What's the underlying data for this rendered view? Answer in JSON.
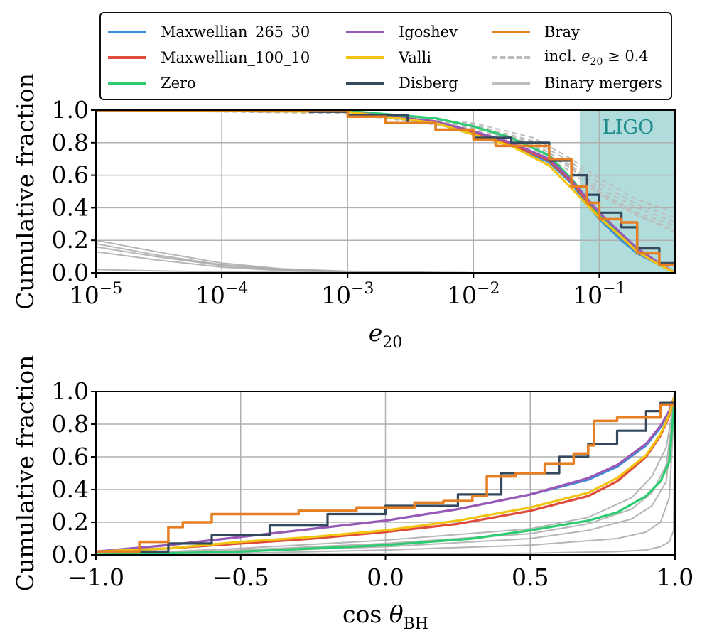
{
  "colors": {
    "Maxwellian_265_30": "#3a8fd8",
    "Maxwellian_100_10": "#e04a3b",
    "Zero": "#2ecc71",
    "Igoshev": "#9b59b6",
    "Valli": "#f1c40f",
    "Disberg": "#34495e",
    "Bray": "#e67e22",
    "incl": "#bdbdbd",
    "mergers": "#a9a9a9",
    "ligo_fill": "#b0dcdc",
    "ligo_text": "#1f8c8c"
  },
  "legend": {
    "items": [
      {
        "key": "Maxwellian_265_30",
        "label": "Maxwellian_265_30",
        "style": "solid"
      },
      {
        "key": "Maxwellian_100_10",
        "label": "Maxwellian_100_10",
        "style": "solid"
      },
      {
        "key": "Zero",
        "label": "Zero",
        "style": "solid"
      },
      {
        "key": "Igoshev",
        "label": "Igoshev",
        "style": "solid"
      },
      {
        "key": "Valli",
        "label": "Valli",
        "style": "solid"
      },
      {
        "key": "Disberg",
        "label": "Disberg",
        "style": "solid"
      },
      {
        "key": "Bray",
        "label": "Bray",
        "style": "solid"
      },
      {
        "key": "incl",
        "label": "incl.",
        "math_var": "e",
        "math_sub": "20",
        "math_rest": "≥ 0.4",
        "style": "dashed"
      },
      {
        "key": "mergers",
        "label": "Binary mergers",
        "style": "solid"
      }
    ]
  },
  "chart_data": [
    {
      "type": "line",
      "title": "",
      "xlabel_var": "e",
      "xlabel_sub": "20",
      "ylabel": "Cumulative fraction",
      "xscale": "log",
      "xlim": [
        1e-05,
        0.4
      ],
      "ylim": [
        0,
        1
      ],
      "grid": true,
      "xticks": [
        {
          "value": 1e-05,
          "base": "10",
          "exp": "−5"
        },
        {
          "value": 0.0001,
          "base": "10",
          "exp": "−4"
        },
        {
          "value": 0.001,
          "base": "10",
          "exp": "−3"
        },
        {
          "value": 0.01,
          "base": "10",
          "exp": "−2"
        },
        {
          "value": 0.1,
          "base": "10",
          "exp": "−1"
        }
      ],
      "yticks": [
        "0.0",
        "0.2",
        "0.4",
        "0.6",
        "0.8",
        "1.0"
      ],
      "shaded_region": {
        "label": "LIGO",
        "x_range": [
          0.07,
          0.4
        ]
      },
      "series": [
        {
          "name": "Maxwellian_265_30",
          "x": [
            1e-05,
            0.001,
            0.005,
            0.01,
            0.02,
            0.04,
            0.06,
            0.1,
            0.15,
            0.2,
            0.3,
            0.4
          ],
          "y": [
            1.0,
            0.99,
            0.92,
            0.85,
            0.78,
            0.68,
            0.55,
            0.33,
            0.2,
            0.12,
            0.05,
            0.0
          ]
        },
        {
          "name": "Maxwellian_100_10",
          "x": [
            1e-05,
            0.001,
            0.005,
            0.01,
            0.02,
            0.04,
            0.06,
            0.1,
            0.15,
            0.2,
            0.3,
            0.4
          ],
          "y": [
            1.0,
            0.99,
            0.93,
            0.86,
            0.79,
            0.69,
            0.56,
            0.35,
            0.22,
            0.13,
            0.05,
            0.0
          ]
        },
        {
          "name": "Zero",
          "x": [
            1e-05,
            0.001,
            0.005,
            0.01,
            0.02,
            0.04,
            0.06,
            0.1,
            0.15,
            0.2,
            0.3,
            0.4
          ],
          "y": [
            1.0,
            0.995,
            0.95,
            0.9,
            0.83,
            0.72,
            0.58,
            0.36,
            0.23,
            0.14,
            0.05,
            0.0
          ]
        },
        {
          "name": "Igoshev",
          "x": [
            1e-05,
            0.001,
            0.005,
            0.01,
            0.02,
            0.04,
            0.06,
            0.1,
            0.15,
            0.2,
            0.3,
            0.4
          ],
          "y": [
            1.0,
            0.99,
            0.93,
            0.87,
            0.8,
            0.7,
            0.57,
            0.37,
            0.24,
            0.15,
            0.06,
            0.0
          ]
        },
        {
          "name": "Valli",
          "x": [
            1e-05,
            0.001,
            0.005,
            0.01,
            0.02,
            0.04,
            0.06,
            0.1,
            0.15,
            0.2,
            0.3,
            0.4
          ],
          "y": [
            1.0,
            0.99,
            0.92,
            0.85,
            0.78,
            0.66,
            0.52,
            0.34,
            0.22,
            0.13,
            0.05,
            0.0
          ]
        },
        {
          "name": "Disberg",
          "x": [
            1e-05,
            0.0005,
            0.001,
            0.003,
            0.005,
            0.01,
            0.02,
            0.04,
            0.06,
            0.08,
            0.1,
            0.15,
            0.2,
            0.3,
            0.4
          ],
          "y": [
            1.0,
            0.99,
            0.97,
            0.92,
            0.88,
            0.83,
            0.8,
            0.69,
            0.6,
            0.48,
            0.37,
            0.28,
            0.15,
            0.06,
            0.0
          ]
        },
        {
          "name": "Bray",
          "x": [
            1e-05,
            0.001,
            0.002,
            0.005,
            0.01,
            0.015,
            0.03,
            0.04,
            0.06,
            0.08,
            0.1,
            0.15,
            0.2,
            0.3,
            0.4
          ],
          "y": [
            1.0,
            0.96,
            0.92,
            0.88,
            0.82,
            0.78,
            0.78,
            0.7,
            0.53,
            0.43,
            0.33,
            0.31,
            0.12,
            0.05,
            0.0
          ]
        }
      ],
      "incl_curves": [
        {
          "x": [
            1e-05,
            0.001,
            0.01,
            0.03,
            0.06,
            0.1,
            0.2,
            0.4
          ],
          "y": [
            1.0,
            0.99,
            0.92,
            0.83,
            0.7,
            0.58,
            0.45,
            0.37
          ]
        },
        {
          "x": [
            1e-05,
            0.001,
            0.01,
            0.03,
            0.06,
            0.1,
            0.2,
            0.4
          ],
          "y": [
            1.0,
            0.99,
            0.91,
            0.81,
            0.68,
            0.55,
            0.42,
            0.34
          ]
        },
        {
          "x": [
            1e-05,
            0.001,
            0.01,
            0.03,
            0.06,
            0.1,
            0.2,
            0.4
          ],
          "y": [
            1.0,
            0.99,
            0.9,
            0.79,
            0.66,
            0.52,
            0.4,
            0.31
          ]
        },
        {
          "x": [
            1e-05,
            0.001,
            0.01,
            0.03,
            0.06,
            0.1,
            0.2,
            0.4
          ],
          "y": [
            1.0,
            0.98,
            0.89,
            0.78,
            0.64,
            0.5,
            0.37,
            0.29
          ]
        },
        {
          "x": [
            1e-05,
            0.001,
            0.01,
            0.03,
            0.06,
            0.1,
            0.2,
            0.4
          ],
          "y": [
            1.0,
            0.98,
            0.88,
            0.76,
            0.62,
            0.48,
            0.35,
            0.27
          ]
        },
        {
          "x": [
            1e-05,
            0.001,
            0.01,
            0.03,
            0.06,
            0.1,
            0.2,
            0.4
          ],
          "y": [
            1.0,
            0.99,
            0.9,
            0.8,
            0.65,
            0.49,
            0.36,
            0.25
          ]
        }
      ],
      "merger_curves": [
        {
          "x": [
            1e-05,
            3e-05,
            0.0001,
            0.0003,
            0.001,
            0.01,
            0.4
          ],
          "y": [
            0.2,
            0.13,
            0.06,
            0.025,
            0.01,
            0.0,
            0.0
          ]
        },
        {
          "x": [
            1e-05,
            3e-05,
            0.0001,
            0.0003,
            0.001,
            0.01,
            0.4
          ],
          "y": [
            0.18,
            0.11,
            0.05,
            0.02,
            0.008,
            0.0,
            0.0
          ]
        },
        {
          "x": [
            1e-05,
            3e-05,
            0.0001,
            0.0003,
            0.001,
            0.01,
            0.4
          ],
          "y": [
            0.16,
            0.1,
            0.045,
            0.018,
            0.007,
            0.0,
            0.0
          ]
        },
        {
          "x": [
            1e-05,
            3e-05,
            0.0001,
            0.0003,
            0.001,
            0.01,
            0.4
          ],
          "y": [
            0.13,
            0.08,
            0.035,
            0.014,
            0.005,
            0.0,
            0.0
          ]
        },
        {
          "x": [
            1e-05,
            3e-05,
            0.0001,
            0.0003,
            0.001,
            0.01,
            0.4
          ],
          "y": [
            0.02,
            0.012,
            0.006,
            0.003,
            0.001,
            0.0,
            0.0
          ]
        }
      ]
    },
    {
      "type": "line",
      "title": "",
      "xlabel_fn": "cos",
      "xlabel_var": "θ",
      "xlabel_sub": "BH",
      "ylabel": "Cumulative fraction",
      "xscale": "linear",
      "xlim": [
        -1,
        1
      ],
      "ylim": [
        0,
        1
      ],
      "grid": true,
      "xticks": [
        {
          "value": -1.0,
          "label": "−1.0"
        },
        {
          "value": -0.5,
          "label": "−0.5"
        },
        {
          "value": 0.0,
          "label": "0.0"
        },
        {
          "value": 0.5,
          "label": "0.5"
        },
        {
          "value": 1.0,
          "label": "1.0"
        }
      ],
      "yticks": [
        "0.0",
        "0.2",
        "0.4",
        "0.6",
        "0.8",
        "1.0"
      ],
      "series": [
        {
          "name": "Maxwellian_265_30",
          "x": [
            -1,
            -0.75,
            -0.5,
            -0.25,
            0,
            0.25,
            0.5,
            0.7,
            0.8,
            0.9,
            0.95,
            0.98,
            1.0
          ],
          "y": [
            0.02,
            0.06,
            0.11,
            0.16,
            0.21,
            0.28,
            0.37,
            0.46,
            0.54,
            0.67,
            0.78,
            0.88,
            0.98
          ]
        },
        {
          "name": "Maxwellian_100_10",
          "x": [
            -1,
            -0.75,
            -0.5,
            -0.25,
            0,
            0.25,
            0.5,
            0.7,
            0.8,
            0.9,
            0.95,
            0.98,
            1.0
          ],
          "y": [
            0.02,
            0.04,
            0.07,
            0.1,
            0.14,
            0.19,
            0.27,
            0.36,
            0.45,
            0.6,
            0.73,
            0.85,
            0.98
          ]
        },
        {
          "name": "Zero",
          "x": [
            -1,
            -0.5,
            0,
            0.3,
            0.5,
            0.7,
            0.8,
            0.9,
            0.95,
            0.98,
            1.0
          ],
          "y": [
            0.0,
            0.02,
            0.06,
            0.1,
            0.15,
            0.21,
            0.26,
            0.36,
            0.45,
            0.57,
            0.98
          ]
        },
        {
          "name": "Igoshev",
          "x": [
            -1,
            -0.75,
            -0.5,
            -0.25,
            0,
            0.25,
            0.5,
            0.7,
            0.8,
            0.9,
            0.95,
            0.98,
            1.0
          ],
          "y": [
            0.02,
            0.06,
            0.11,
            0.16,
            0.21,
            0.28,
            0.37,
            0.47,
            0.55,
            0.68,
            0.79,
            0.88,
            0.98
          ]
        },
        {
          "name": "Valli",
          "x": [
            -1,
            -0.75,
            -0.5,
            -0.25,
            0,
            0.25,
            0.5,
            0.7,
            0.8,
            0.9,
            0.95,
            0.98,
            1.0
          ],
          "y": [
            0.02,
            0.04,
            0.08,
            0.11,
            0.15,
            0.21,
            0.29,
            0.38,
            0.47,
            0.61,
            0.74,
            0.86,
            0.98
          ]
        },
        {
          "name": "Disberg",
          "x": [
            -1,
            -0.75,
            -0.6,
            -0.4,
            -0.2,
            0,
            0.25,
            0.4,
            0.6,
            0.7,
            0.8,
            0.9,
            0.95,
            1.0
          ],
          "y": [
            0.02,
            0.07,
            0.12,
            0.18,
            0.25,
            0.3,
            0.37,
            0.5,
            0.6,
            0.68,
            0.76,
            0.88,
            0.93,
            0.98
          ]
        },
        {
          "name": "Bray",
          "x": [
            -1,
            -0.85,
            -0.75,
            -0.7,
            -0.6,
            -0.5,
            -0.3,
            -0.1,
            0.1,
            0.2,
            0.3,
            0.35,
            0.45,
            0.55,
            0.65,
            0.7,
            0.72,
            0.8,
            0.85,
            0.9,
            0.95,
            1.0
          ],
          "y": [
            0.02,
            0.08,
            0.17,
            0.2,
            0.25,
            0.25,
            0.27,
            0.29,
            0.32,
            0.33,
            0.36,
            0.48,
            0.5,
            0.56,
            0.62,
            0.67,
            0.82,
            0.84,
            0.84,
            0.84,
            0.92,
            0.98
          ]
        }
      ],
      "merger_curves": [
        {
          "x": [
            -1,
            -0.5,
            0,
            0.5,
            0.8,
            0.9,
            0.95,
            0.98,
            1.0
          ],
          "y": [
            0.0,
            0.01,
            0.03,
            0.06,
            0.1,
            0.14,
            0.2,
            0.35,
            0.98
          ]
        },
        {
          "x": [
            -1,
            -0.5,
            0,
            0.5,
            0.7,
            0.85,
            0.92,
            0.97,
            1.0
          ],
          "y": [
            0.0,
            0.02,
            0.05,
            0.1,
            0.15,
            0.22,
            0.3,
            0.45,
            0.98
          ]
        },
        {
          "x": [
            -1,
            -0.5,
            0,
            0.5,
            0.7,
            0.85,
            0.92,
            0.97,
            1.0
          ],
          "y": [
            0.0,
            0.03,
            0.07,
            0.13,
            0.19,
            0.28,
            0.38,
            0.55,
            0.98
          ]
        },
        {
          "x": [
            -1,
            -0.5,
            0,
            0.5,
            0.7,
            0.85,
            0.92,
            0.97,
            1.0
          ],
          "y": [
            0.0,
            0.04,
            0.09,
            0.16,
            0.23,
            0.35,
            0.48,
            0.66,
            0.98
          ]
        },
        {
          "x": [
            -1,
            -0.5,
            0,
            0.5,
            0.8,
            0.9,
            0.95,
            0.98,
            0.995,
            1.0
          ],
          "y": [
            0.0,
            0.002,
            0.005,
            0.01,
            0.02,
            0.03,
            0.05,
            0.08,
            0.15,
            0.98
          ]
        }
      ]
    }
  ]
}
